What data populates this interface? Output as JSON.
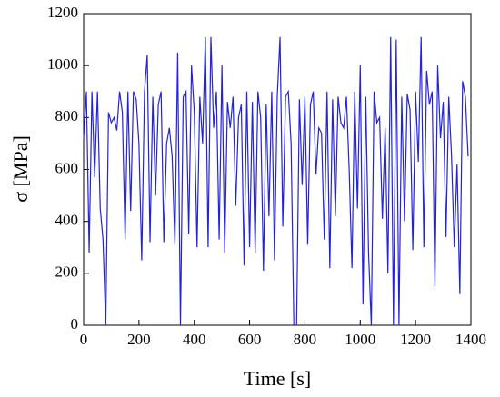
{
  "chart_data": {
    "type": "line",
    "x_label": "Time [s]",
    "y_label": "σ [MPa]",
    "x": [
      0,
      10,
      20,
      30,
      40,
      50,
      60,
      70,
      80,
      90,
      100,
      110,
      120,
      130,
      140,
      150,
      160,
      170,
      180,
      190,
      200,
      210,
      220,
      230,
      240,
      250,
      260,
      270,
      280,
      290,
      300,
      310,
      320,
      330,
      340,
      350,
      360,
      370,
      380,
      390,
      400,
      410,
      420,
      430,
      440,
      450,
      460,
      470,
      480,
      490,
      500,
      510,
      520,
      530,
      540,
      550,
      560,
      570,
      580,
      590,
      600,
      610,
      620,
      630,
      640,
      650,
      660,
      670,
      680,
      690,
      700,
      710,
      720,
      730,
      740,
      750,
      760,
      770,
      780,
      790,
      800,
      810,
      820,
      830,
      840,
      850,
      860,
      870,
      880,
      890,
      900,
      910,
      920,
      930,
      940,
      950,
      960,
      970,
      980,
      990,
      1000,
      1010,
      1020,
      1030,
      1040,
      1050,
      1060,
      1070,
      1080,
      1090,
      1100,
      1110,
      1120,
      1130,
      1140,
      1150,
      1160,
      1170,
      1180,
      1190,
      1200,
      1210,
      1220,
      1230,
      1240,
      1250,
      1260,
      1270,
      1280,
      1290,
      1300,
      1310,
      1320,
      1330,
      1340,
      1350,
      1360,
      1370,
      1380,
      1390
    ],
    "series": [
      {
        "color": "#2222e0",
        "values": [
          720,
          900,
          280,
          900,
          570,
          900,
          450,
          330,
          0,
          820,
          780,
          800,
          750,
          900,
          820,
          330,
          900,
          440,
          900,
          870,
          700,
          250,
          900,
          1040,
          320,
          880,
          500,
          850,
          900,
          320,
          700,
          760,
          650,
          310,
          1050,
          0,
          880,
          900,
          350,
          1000,
          820,
          300,
          880,
          700,
          1110,
          300,
          1110,
          760,
          900,
          330,
          1000,
          280,
          860,
          760,
          880,
          460,
          800,
          850,
          230,
          900,
          300,
          860,
          280,
          900,
          800,
          210,
          850,
          420,
          900,
          250,
          880,
          1110,
          380,
          880,
          900,
          700,
          0,
          0,
          870,
          540,
          880,
          310,
          850,
          900,
          580,
          760,
          740,
          330,
          900,
          220,
          870,
          420,
          880,
          780,
          760,
          880,
          600,
          220,
          900,
          450,
          1000,
          80,
          880,
          280,
          0,
          900,
          780,
          800,
          410,
          760,
          200,
          1110,
          0,
          1100,
          0,
          880,
          400,
          890,
          830,
          290,
          900,
          630,
          1110,
          300,
          980,
          850,
          900,
          150,
          1000,
          720,
          860,
          340,
          880,
          650,
          300,
          620,
          120,
          940,
          880,
          650
        ]
      }
    ],
    "xlim": [
      0,
      1400
    ],
    "ylim": [
      0,
      1200
    ],
    "xticks": [
      0,
      200,
      400,
      600,
      800,
      1000,
      1200,
      1400
    ],
    "yticks": [
      0,
      200,
      400,
      600,
      800,
      1000,
      1200
    ]
  }
}
